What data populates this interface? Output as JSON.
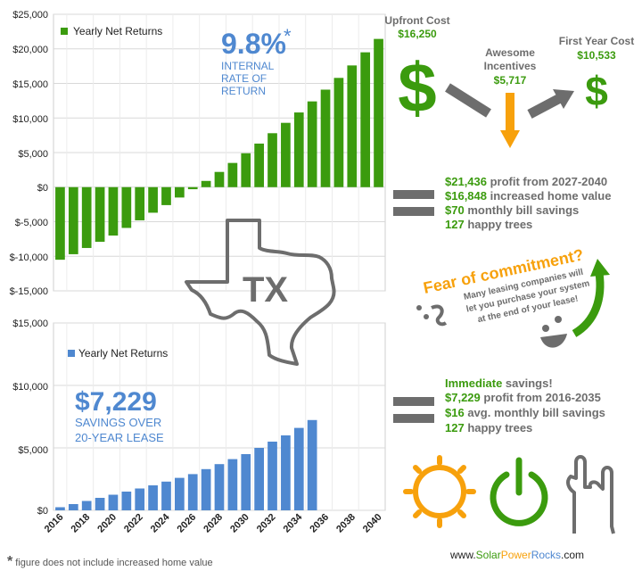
{
  "colors": {
    "green": "#3b9b0e",
    "blue": "#4f88d0",
    "grey": "#6d6d6d",
    "orange": "#f7a10c",
    "sun": "#f7a10c"
  },
  "top_chart": {
    "legend": "Yearly Net Returns",
    "y_ticks": [
      "$25,000",
      "$20,000",
      "$15,000",
      "$10,000",
      "$5,000",
      "$0",
      "$-5,000",
      "$-10,000",
      "$-15,000"
    ],
    "irr_value": "9.8%",
    "irr_asterisk": "*",
    "irr_line1": "INTERNAL",
    "irr_line2": "RATE OF",
    "irr_line3": "RETURN"
  },
  "bottom_chart": {
    "legend": "Yearly Net Returns",
    "y_ticks": [
      "$15,000",
      "$10,000",
      "$5,000",
      "$0"
    ],
    "x_ticks": [
      "2016",
      "2018",
      "2020",
      "2022",
      "2024",
      "2026",
      "2028",
      "2030",
      "2032",
      "2034",
      "2036",
      "2038",
      "2040"
    ],
    "savings_value": "$7,229",
    "savings_line1": "SAVINGS OVER",
    "savings_line2": "20-YEAR LEASE"
  },
  "chart_data": [
    {
      "type": "bar",
      "title": "",
      "legend": "Yearly Net Returns",
      "x": [
        2016,
        2017,
        2018,
        2019,
        2020,
        2021,
        2022,
        2023,
        2024,
        2025,
        2026,
        2027,
        2028,
        2029,
        2030,
        2031,
        2032,
        2033,
        2034,
        2035,
        2036,
        2037,
        2038,
        2039,
        2040
      ],
      "values": [
        -10500,
        -9700,
        -8800,
        -7900,
        -7000,
        -5900,
        -4800,
        -3700,
        -2600,
        -1500,
        -300,
        900,
        2200,
        3500,
        4900,
        6300,
        7800,
        9300,
        10800,
        12400,
        14100,
        15800,
        17600,
        19500,
        21436
      ],
      "ylim": [
        -15000,
        25000
      ],
      "color": "#3b9b0e",
      "grid": true,
      "legend_position": "top-left"
    },
    {
      "type": "bar",
      "title": "",
      "legend": "Yearly Net Returns",
      "x": [
        2016,
        2017,
        2018,
        2019,
        2020,
        2021,
        2022,
        2023,
        2024,
        2025,
        2026,
        2027,
        2028,
        2029,
        2030,
        2031,
        2032,
        2033,
        2034,
        2035
      ],
      "values": [
        250,
        500,
        750,
        1000,
        1250,
        1500,
        1750,
        2000,
        2300,
        2600,
        2900,
        3300,
        3700,
        4100,
        4500,
        5000,
        5500,
        6000,
        6600,
        7229
      ],
      "ylim": [
        0,
        15000
      ],
      "xlim": [
        2016,
        2040
      ],
      "color": "#4f88d0",
      "grid": true,
      "legend_position": "top-left"
    }
  ],
  "upfront": {
    "label": "Upfront Cost",
    "value": "$16,250"
  },
  "incentives": {
    "label1": "Awesome",
    "label2": "Incentives",
    "value": "$5,717"
  },
  "first_year": {
    "label": "First Year Cost",
    "value": "$10,533"
  },
  "dollar_sign": "$",
  "purchase_results": [
    {
      "strong": "$21,436",
      "rest": " profit from 2027-2040"
    },
    {
      "strong": "$16,848",
      "rest": " increased home value"
    },
    {
      "strong": "$70",
      "rest": " monthly bill savings"
    },
    {
      "strong": "127",
      "rest": " happy trees"
    }
  ],
  "state": "TX",
  "fear": {
    "title": "Fear of commitment?",
    "line1": "Many leasing companies will",
    "line2": "let you purchase your system",
    "line3": "at the end of your lease!"
  },
  "lease_results": [
    {
      "strong": "Immediate",
      "rest": " savings!"
    },
    {
      "strong": "$7,229",
      "rest": " profit from 2016-2035"
    },
    {
      "strong": "$16",
      "rest": " avg. monthly bill savings"
    },
    {
      "strong": "127",
      "rest": " happy trees"
    }
  ],
  "footnote": {
    "asterisk": "*",
    "text": " figure does not include increased home value"
  },
  "site": {
    "www": "www.",
    "solar": "Solar",
    "power": "Power",
    "rocks": "Rocks",
    "com": ".com"
  }
}
